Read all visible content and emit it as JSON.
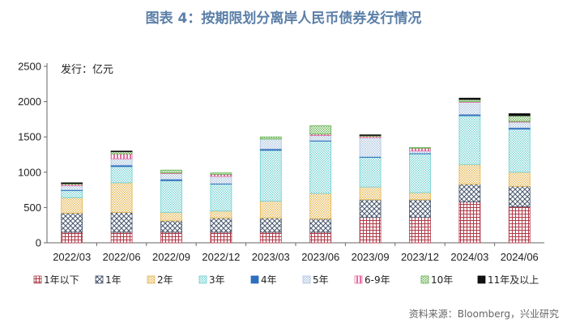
{
  "chart_data": {
    "type": "bar",
    "stacked": true,
    "title": "图表 4：按期限划分离岸人民币债券发行情况",
    "unit_label": "发行：亿元",
    "source": "资料来源：Bloomberg，兴业研究",
    "ylim": [
      0,
      2500
    ],
    "yticks": [
      0,
      500,
      1000,
      1500,
      2000,
      2500
    ],
    "categories": [
      "2022/03",
      "2022/06",
      "2022/09",
      "2022/12",
      "2023/03",
      "2023/06",
      "2023/09",
      "2023/12",
      "2024/03",
      "2024/06"
    ],
    "legend_position": "bottom",
    "series": [
      {
        "name": "1年以下",
        "color": "#b03a48",
        "pattern": "grid",
        "values": [
          150,
          150,
          150,
          150,
          150,
          150,
          360,
          360,
          580,
          510
        ]
      },
      {
        "name": "1年",
        "color": "#45546b",
        "pattern": "cross",
        "values": [
          270,
          280,
          160,
          200,
          200,
          190,
          250,
          250,
          250,
          290
        ]
      },
      {
        "name": "2年",
        "color": "#e3b34a",
        "pattern": "dots",
        "values": [
          220,
          420,
          120,
          100,
          240,
          360,
          180,
          100,
          280,
          200
        ]
      },
      {
        "name": "3年",
        "color": "#6fd0d0",
        "pattern": "dots",
        "values": [
          100,
          230,
          450,
          380,
          720,
          740,
          420,
          550,
          690,
          610
        ]
      },
      {
        "name": "4年",
        "color": "#2f6fbf",
        "pattern": "solid",
        "values": [
          10,
          20,
          20,
          10,
          20,
          10,
          10,
          10,
          20,
          20
        ]
      },
      {
        "name": "5年",
        "color": "#a9c3de",
        "pattern": "dots",
        "values": [
          60,
          90,
          80,
          100,
          140,
          70,
          270,
          30,
          170,
          80
        ]
      },
      {
        "name": "6-9年",
        "color": "#e66aa0",
        "pattern": "stripes",
        "values": [
          20,
          70,
          10,
          30,
          0,
          20,
          20,
          40,
          10,
          10
        ]
      },
      {
        "name": "10年",
        "color": "#5fb04a",
        "pattern": "dots",
        "values": [
          10,
          30,
          40,
          20,
          30,
          120,
          10,
          10,
          30,
          80
        ]
      },
      {
        "name": "11年及以上",
        "color": "#111111",
        "pattern": "solid",
        "values": [
          10,
          10,
          0,
          0,
          0,
          0,
          10,
          0,
          20,
          30
        ]
      }
    ]
  }
}
